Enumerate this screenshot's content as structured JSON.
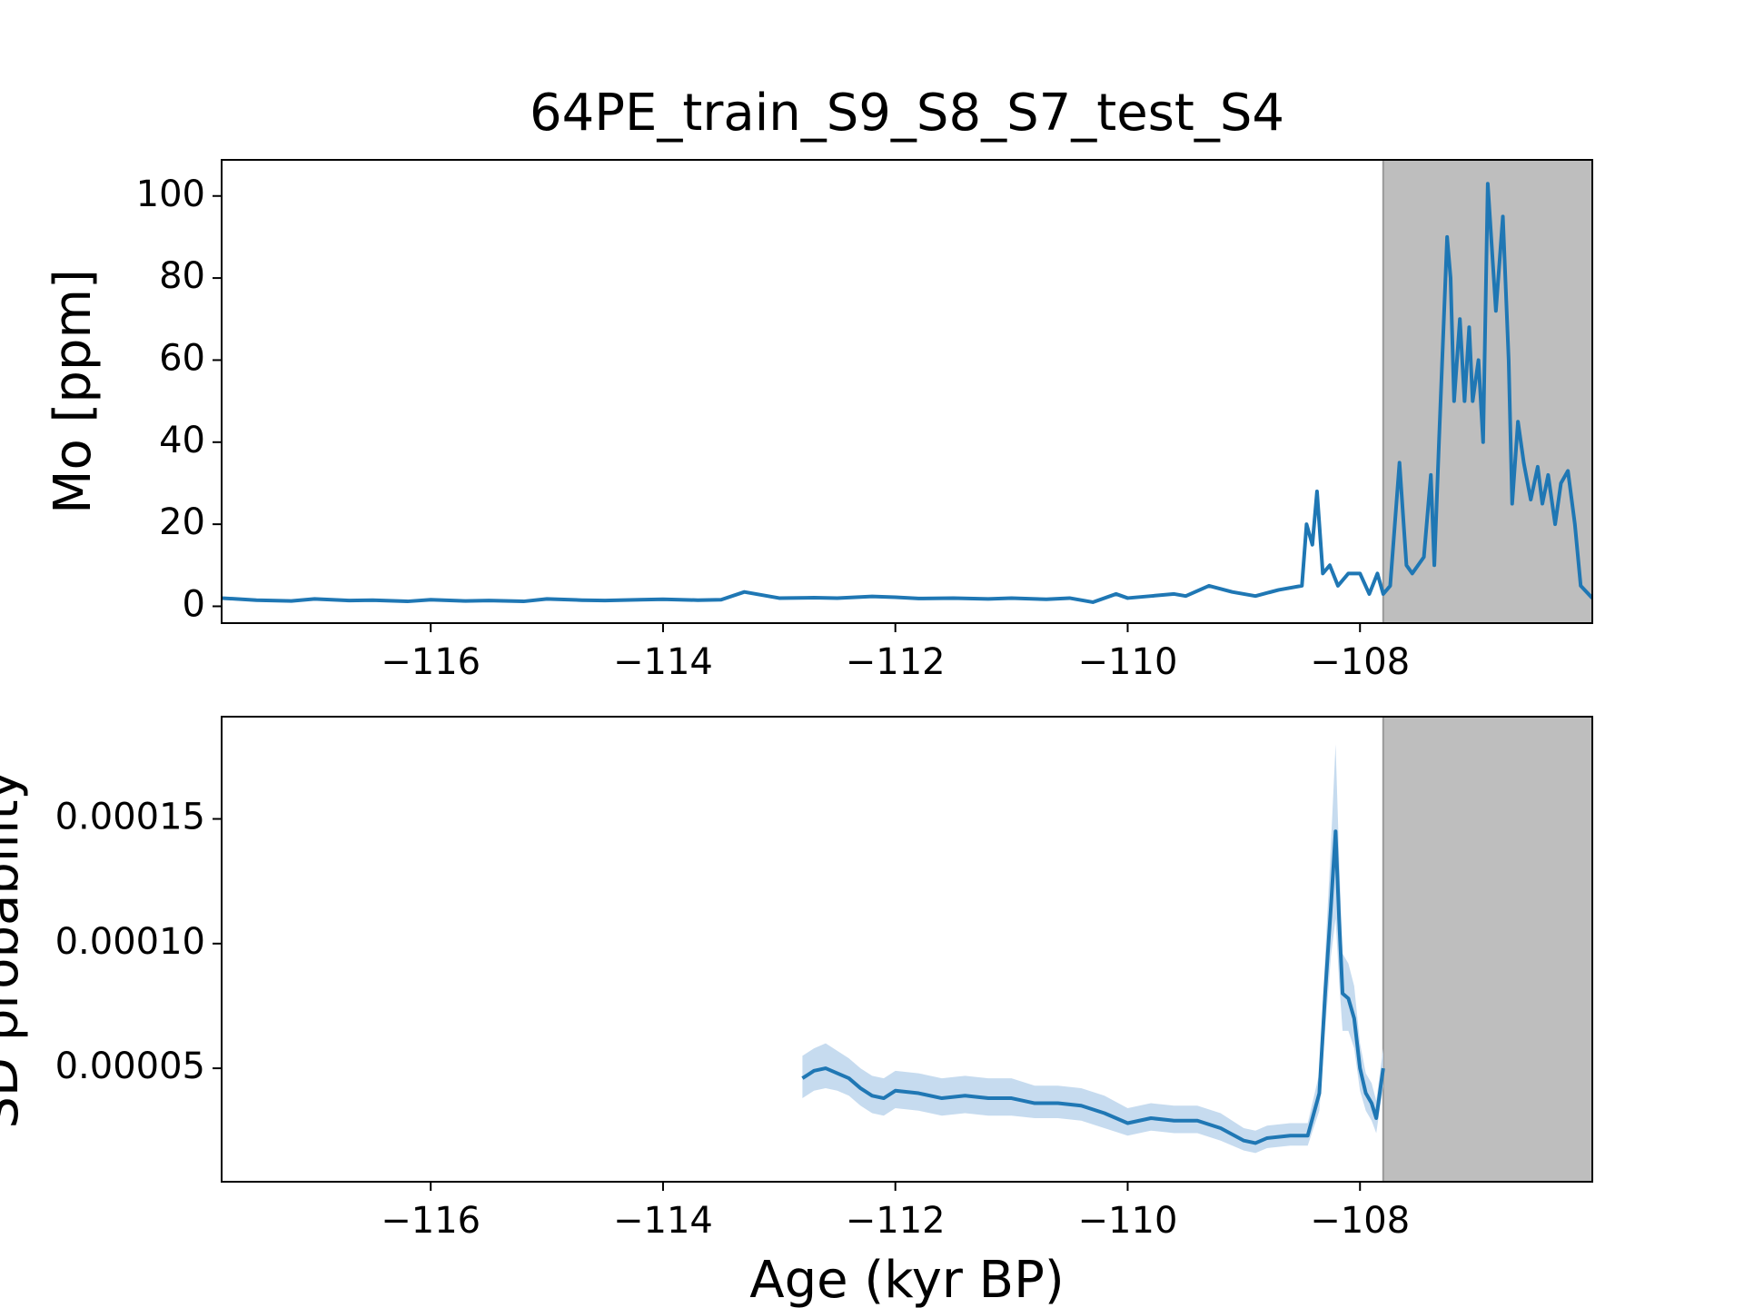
{
  "chart_data": [
    {
      "type": "line",
      "title": "64PE_train_S9_S8_S7_test_S4",
      "ylabel": "Mo [ppm]",
      "xlim": [
        -117.8,
        -106.0
      ],
      "ylim": [
        -4.1,
        108.8
      ],
      "xticks": [
        {
          "value": -116,
          "label": "−116"
        },
        {
          "value": -114,
          "label": "−114"
        },
        {
          "value": -112,
          "label": "−112"
        },
        {
          "value": -110,
          "label": "−110"
        },
        {
          "value": -108,
          "label": "−108"
        }
      ],
      "yticks": [
        0,
        20,
        40,
        60,
        80,
        100
      ],
      "span": [
        -107.8,
        -106.0
      ],
      "span_color": "#bebebe",
      "series": [
        {
          "color": "#1f77b4",
          "x": [
            -117.8,
            -117.5,
            -117.2,
            -117,
            -116.7,
            -116.5,
            -116.2,
            -116,
            -115.7,
            -115.5,
            -115.2,
            -115,
            -114.7,
            -114.5,
            -114.2,
            -114,
            -113.7,
            -113.5,
            -113.3,
            -113,
            -112.7,
            -112.5,
            -112.2,
            -112,
            -111.8,
            -111.5,
            -111.2,
            -111,
            -110.7,
            -110.5,
            -110.3,
            -110.1,
            -110,
            -109.8,
            -109.6,
            -109.5,
            -109.3,
            -109.1,
            -108.9,
            -108.7,
            -108.5,
            -108.46,
            -108.41,
            -108.37,
            -108.32,
            -108.26,
            -108.19,
            -108.1,
            -108,
            -107.92,
            -107.85,
            -107.8,
            -107.74,
            -107.66,
            -107.6,
            -107.55,
            -107.45,
            -107.39,
            -107.36,
            -107.32,
            -107.25,
            -107.22,
            -107.19,
            -107.14,
            -107.1,
            -107.06,
            -107.03,
            -106.98,
            -106.94,
            -106.9,
            -106.83,
            -106.77,
            -106.72,
            -106.69,
            -106.64,
            -106.59,
            -106.53,
            -106.47,
            -106.43,
            -106.38,
            -106.32,
            -106.27,
            -106.21,
            -106.15,
            -106.1,
            -106.0
          ],
          "values": [
            2,
            1.5,
            1.3,
            1.8,
            1.4,
            1.5,
            1.2,
            1.6,
            1.3,
            1.4,
            1.2,
            1.8,
            1.5,
            1.4,
            1.6,
            1.7,
            1.5,
            1.6,
            3.5,
            2,
            2.1,
            2,
            2.4,
            2.2,
            1.9,
            2,
            1.8,
            2,
            1.7,
            2,
            1,
            3,
            2,
            2.5,
            3,
            2.5,
            5,
            3.5,
            2.5,
            4,
            5,
            20,
            15,
            28,
            8,
            10,
            5,
            8,
            8,
            3,
            8,
            3,
            5,
            35,
            10,
            8,
            12,
            32,
            10,
            40,
            90,
            80,
            50,
            70,
            50,
            68,
            50,
            60,
            40,
            103,
            72,
            95,
            60,
            25,
            45,
            35,
            26,
            34,
            25,
            32,
            20,
            30,
            33,
            20,
            5,
            2
          ]
        }
      ]
    },
    {
      "type": "line",
      "ylabel": "SD probability",
      "xlabel": "Age (kyr BP)",
      "xlim": [
        -117.8,
        -106.0
      ],
      "ylim": [
        4.5e-06,
        0.000191
      ],
      "xticks": [
        {
          "value": -116,
          "label": "−116"
        },
        {
          "value": -114,
          "label": "−114"
        },
        {
          "value": -112,
          "label": "−112"
        },
        {
          "value": -110,
          "label": "−110"
        },
        {
          "value": -108,
          "label": "−108"
        }
      ],
      "yticks": [
        {
          "value": 5e-05,
          "label": "0.00005"
        },
        {
          "value": 0.0001,
          "label": "0.00010"
        },
        {
          "value": 0.00015,
          "label": "0.00015"
        }
      ],
      "span": [
        -107.8,
        -106.0
      ],
      "span_color": "#bebebe",
      "series": [
        {
          "color": "#1f77b4",
          "band_color": "#c6dbef",
          "x": [
            -112.8,
            -112.7,
            -112.6,
            -112.5,
            -112.4,
            -112.3,
            -112.2,
            -112.1,
            -112,
            -111.8,
            -111.6,
            -111.4,
            -111.2,
            -111,
            -110.8,
            -110.6,
            -110.4,
            -110.2,
            -110,
            -109.8,
            -109.6,
            -109.4,
            -109.2,
            -109,
            -108.9,
            -108.8,
            -108.6,
            -108.45,
            -108.35,
            -108.3,
            -108.25,
            -108.21,
            -108.18,
            -108.15,
            -108.1,
            -108.05,
            -108,
            -107.95,
            -107.9,
            -107.86,
            -107.8
          ],
          "values": [
            4.6e-05,
            4.9e-05,
            5e-05,
            4.8e-05,
            4.6e-05,
            4.2e-05,
            3.9e-05,
            3.8e-05,
            4.1e-05,
            4e-05,
            3.8e-05,
            3.9e-05,
            3.8e-05,
            3.8e-05,
            3.6e-05,
            3.6e-05,
            3.5e-05,
            3.2e-05,
            2.8e-05,
            3e-05,
            2.9e-05,
            2.9e-05,
            2.6e-05,
            2.1e-05,
            2e-05,
            2.2e-05,
            2.3e-05,
            2.3e-05,
            4e-05,
            8e-05,
            0.000115,
            0.000145,
            0.00011,
            8e-05,
            7.8e-05,
            7e-05,
            5e-05,
            4e-05,
            3.6e-05,
            3e-05,
            5e-05
          ],
          "lower": [
            3.8e-05,
            4.1e-05,
            4.2e-05,
            4.1e-05,
            3.9e-05,
            3.5e-05,
            3.2e-05,
            3.1e-05,
            3.4e-05,
            3.3e-05,
            3.1e-05,
            3.2e-05,
            3.1e-05,
            3.1e-05,
            3e-05,
            3e-05,
            2.9e-05,
            2.6e-05,
            2.3e-05,
            2.5e-05,
            2.4e-05,
            2.4e-05,
            2.1e-05,
            1.7e-05,
            1.6e-05,
            1.8e-05,
            1.9e-05,
            1.9e-05,
            3.3e-05,
            6.5e-05,
            9.5e-05,
            0.00011,
            8.5e-05,
            6.5e-05,
            6.5e-05,
            5.8e-05,
            4.1e-05,
            3.3e-05,
            2.9e-05,
            2.4e-05,
            4.3e-05
          ],
          "upper": [
            5.5e-05,
            5.8e-05,
            6e-05,
            5.7e-05,
            5.4e-05,
            5e-05,
            4.7e-05,
            4.6e-05,
            4.9e-05,
            4.8e-05,
            4.6e-05,
            4.7e-05,
            4.6e-05,
            4.6e-05,
            4.3e-05,
            4.3e-05,
            4.2e-05,
            3.9e-05,
            3.4e-05,
            3.6e-05,
            3.5e-05,
            3.5e-05,
            3.2e-05,
            2.6e-05,
            2.5e-05,
            2.7e-05,
            2.8e-05,
            2.8e-05,
            4.8e-05,
            9.5e-05,
            0.00014,
            0.00018,
            0.000135,
            9.6e-05,
            9.2e-05,
            8.3e-05,
            6e-05,
            4.8e-05,
            4.4e-05,
            3.7e-05,
            5.8e-05
          ]
        }
      ]
    }
  ]
}
